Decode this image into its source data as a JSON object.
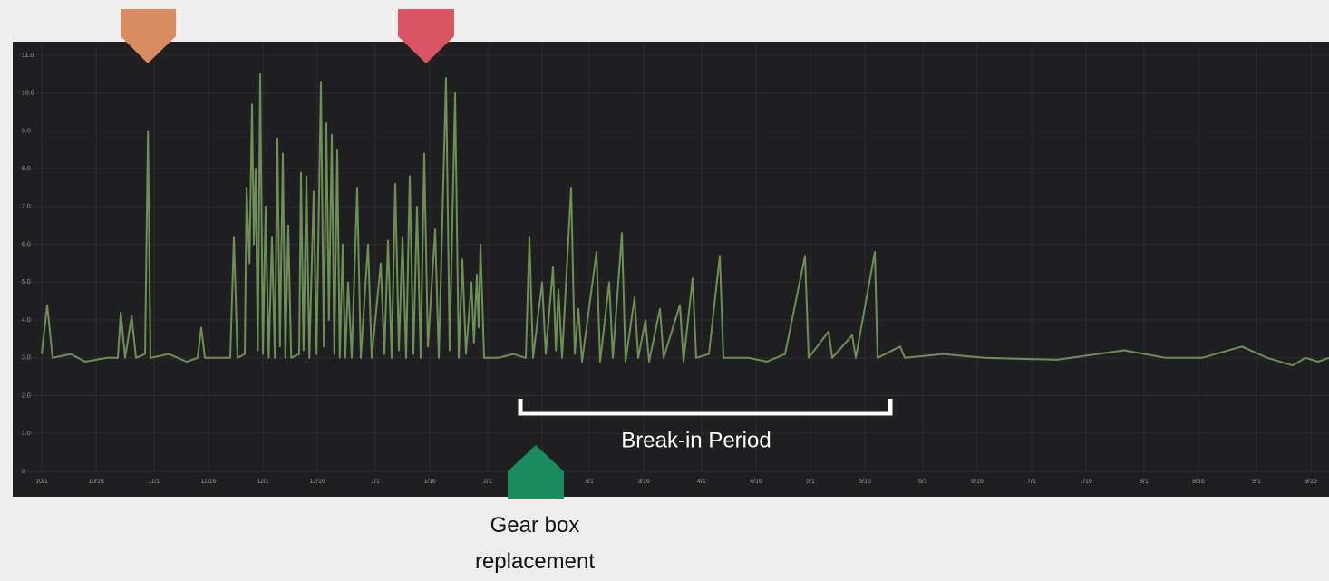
{
  "chart_data": {
    "type": "line",
    "color": "#6f8f58",
    "x": [
      0,
      1.5,
      3,
      8,
      12,
      18,
      21,
      21.8,
      23,
      24.8,
      26,
      28.5,
      29.3,
      30,
      35,
      40,
      43,
      44,
      45,
      52,
      53,
      54,
      56,
      56.5,
      57.3,
      58,
      58.5,
      59,
      59.6,
      60.25,
      61,
      61.75,
      62.6,
      63.5,
      64.3,
      65,
      65.7,
      66.5,
      67.2,
      68,
      68.8,
      71,
      71.5,
      72.2,
      73,
      73.8,
      75,
      75.8,
      77,
      77.8,
      78.5,
      79.2,
      80,
      80.7,
      81.5,
      82.2,
      83,
      83.7,
      84.5,
      85.5,
      87,
      88,
      90,
      91,
      93.5,
      94.5,
      95.5,
      96.5,
      97.5,
      98.5,
      99.5,
      100.5,
      101.5,
      102.5,
      103.5,
      104.5,
      105.5,
      106.5,
      108.5,
      109.5,
      111.5,
      112.5,
      114,
      115,
      116,
      117,
      118.5,
      119.2,
      120,
      120.5,
      121,
      122,
      126,
      130,
      133.5,
      134.5,
      135.5,
      138,
      139,
      141,
      141.8,
      142.5,
      143.5,
      146,
      147,
      148,
      149,
      153,
      154,
      156.5,
      157.5,
      160,
      161,
      163.5,
      164.5,
      166.5,
      167.5,
      170.5,
      171.5,
      176,
      177,
      179.5,
      180.5,
      184,
      187,
      188,
      195,
      200,
      205,
      210.5,
      211.5,
      217,
      218,
      223.5,
      224.5,
      229.75,
      230.5,
      236.75,
      238,
      248.5,
      260,
      280,
      298.5,
      310,
      320,
      331,
      338,
      345,
      348.5,
      352,
      355
    ],
    "values": [
      3.1,
      4.4,
      3.0,
      3.1,
      2.9,
      3.0,
      3.0,
      4.2,
      3.0,
      4.1,
      3.0,
      3.1,
      9.0,
      3.0,
      3.1,
      2.9,
      3.0,
      3.8,
      3.0,
      3.0,
      6.2,
      3.0,
      3.1,
      7.5,
      5.5,
      9.7,
      6.0,
      8.0,
      3.2,
      10.5,
      3.1,
      7.0,
      3.0,
      6.2,
      3.0,
      8.8,
      3.3,
      8.4,
      3.0,
      6.5,
      3.0,
      3.1,
      7.9,
      3.2,
      7.8,
      3.0,
      7.4,
      3.1,
      10.3,
      3.3,
      9.2,
      4.0,
      8.9,
      3.1,
      8.5,
      3.0,
      6.0,
      3.0,
      5.0,
      3.0,
      7.5,
      3.0,
      6.0,
      3.0,
      5.5,
      3.1,
      6.1,
      3.0,
      7.6,
      3.2,
      6.2,
      3.0,
      7.8,
      3.1,
      7.0,
      3.0,
      8.4,
      3.3,
      6.4,
      3.0,
      10.4,
      3.2,
      10.0,
      3.0,
      5.6,
      3.1,
      5.0,
      3.4,
      5.2,
      3.8,
      6.0,
      3.0,
      3.0,
      3.1,
      3.0,
      6.2,
      3.0,
      5.0,
      3.1,
      5.4,
      3.2,
      4.8,
      3.0,
      7.5,
      3.1,
      4.3,
      2.9,
      5.8,
      2.9,
      5.0,
      3.0,
      6.3,
      2.9,
      4.6,
      3.0,
      4.0,
      2.9,
      4.3,
      3.0,
      4.4,
      2.9,
      5.1,
      3.0,
      3.1,
      5.7,
      3.0,
      3.0,
      2.9,
      3.1,
      5.7,
      3.0,
      3.7,
      3.0,
      3.6,
      3.0,
      5.8,
      3.0,
      3.3,
      3.0,
      3.1,
      3.0,
      2.95,
      3.2,
      3.0,
      3.0,
      3.3,
      3.0,
      2.8,
      3.0,
      2.9,
      3.0
    ],
    "xlim": [
      -6.5,
      355
    ],
    "xticks": [
      {
        "value": 0,
        "label": "10/1"
      },
      {
        "value": 15,
        "label": "10/16"
      },
      {
        "value": 31,
        "label": "11/1"
      },
      {
        "value": 46,
        "label": "11/16"
      },
      {
        "value": 61,
        "label": "12/1"
      },
      {
        "value": 76,
        "label": "12/16"
      },
      {
        "value": 92,
        "label": "1/1"
      },
      {
        "value": 107,
        "label": "1/16"
      },
      {
        "value": 123,
        "label": "2/1"
      },
      {
        "value": 138,
        "label": "2/16"
      },
      {
        "value": 151,
        "label": "3/1"
      },
      {
        "value": 166,
        "label": "3/16"
      },
      {
        "value": 182,
        "label": "4/1"
      },
      {
        "value": 197,
        "label": "4/16"
      },
      {
        "value": 212,
        "label": "5/1"
      },
      {
        "value": 227,
        "label": "5/16"
      },
      {
        "value": 243,
        "label": "6/1"
      },
      {
        "value": 258,
        "label": "6/16"
      },
      {
        "value": 273,
        "label": "7/1"
      },
      {
        "value": 288,
        "label": "7/16"
      },
      {
        "value": 304,
        "label": "8/1"
      },
      {
        "value": 319,
        "label": "8/16"
      },
      {
        "value": 335,
        "label": "9/1"
      },
      {
        "value": 350,
        "label": "9/16"
      }
    ],
    "ylim": [
      0,
      11
    ],
    "yticks": [
      0,
      {
        "value": 1,
        "label": "1.0"
      },
      {
        "value": 2,
        "label": "2.0"
      },
      {
        "value": 3,
        "label": "3.0"
      },
      {
        "value": 4,
        "label": "4.0"
      },
      {
        "value": 5,
        "label": "5.0"
      },
      {
        "value": 6,
        "label": "6.0"
      },
      {
        "value": 7,
        "label": "7.0"
      },
      {
        "value": 8,
        "label": "8.0"
      },
      {
        "value": 9,
        "label": "9.0"
      },
      {
        "value": 10,
        "label": "10.0"
      },
      {
        "value": 11,
        "label": "11.0"
      }
    ],
    "grid": true,
    "annotations": {
      "break_in": "Break-in Period",
      "gear_box": "Gear box replacement"
    }
  }
}
